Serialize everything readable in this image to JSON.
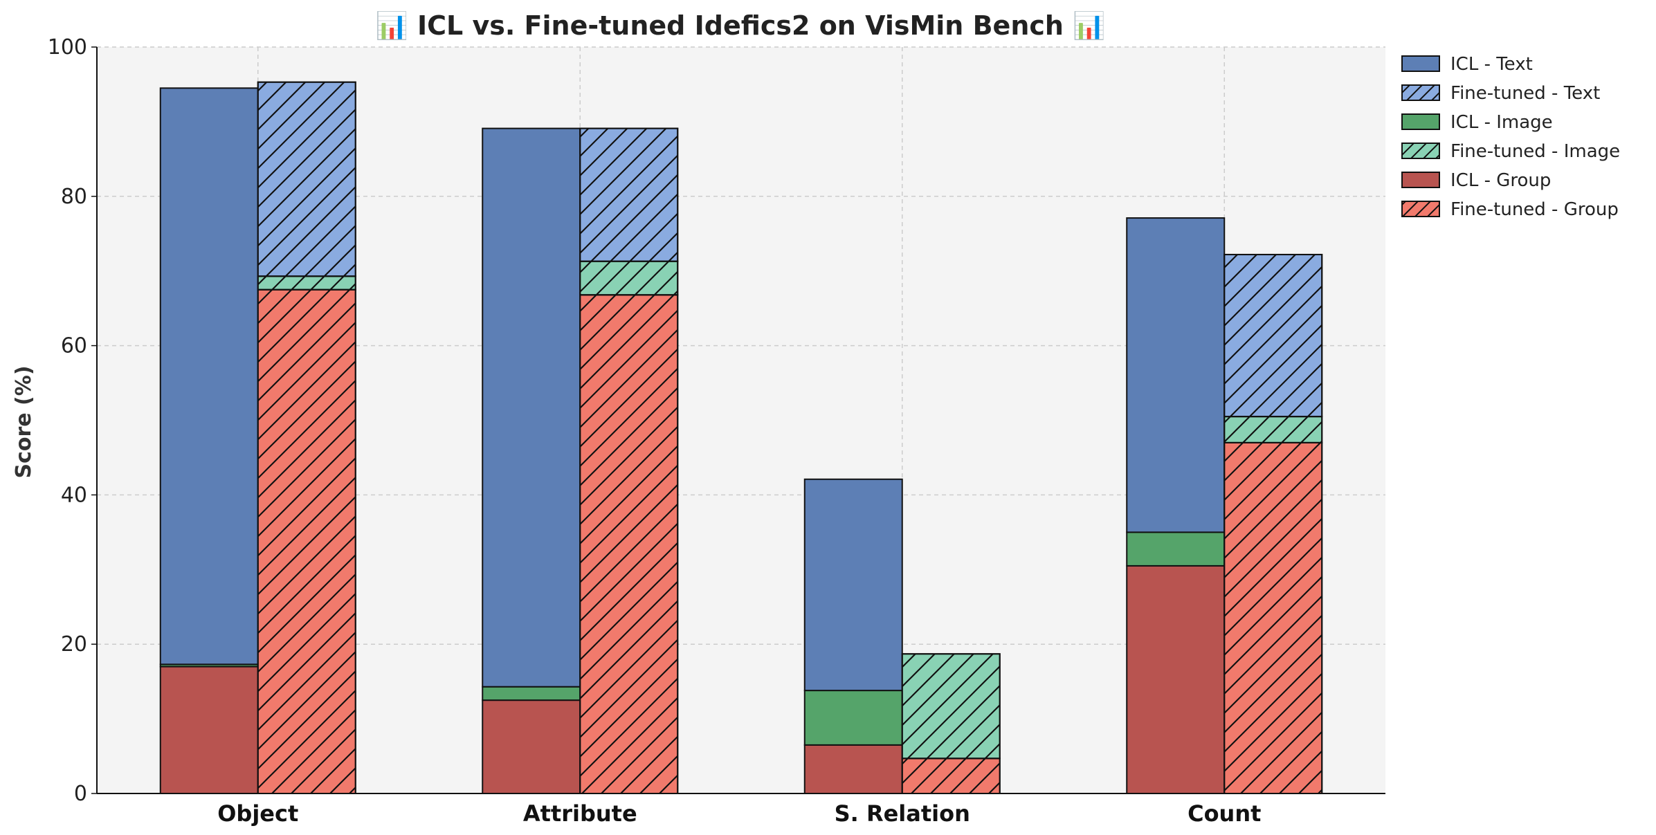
{
  "chart_data": {
    "type": "bar",
    "stacked": true,
    "title": "📊 ICL vs. Fine-tuned Idefics2 on VisMin Bench 📊",
    "xlabel": "",
    "ylabel": "Score (%)",
    "ylim": [
      0,
      100
    ],
    "yticks": [
      0,
      20,
      40,
      60,
      80,
      100
    ],
    "grid": true,
    "legend_position": "top-right-outside",
    "categories": [
      "Object",
      "Attribute",
      "S. Relation",
      "Count"
    ],
    "groups": [
      {
        "name": "ICL",
        "hatched": false,
        "segments": [
          {
            "name": "ICL - Group",
            "color": "#b85450",
            "values": [
              17.0,
              12.5,
              6.5,
              30.5
            ]
          },
          {
            "name": "ICL - Image",
            "color": "#55a46a",
            "values": [
              0.3,
              1.8,
              7.3,
              4.5
            ]
          },
          {
            "name": "ICL - Text",
            "color": "#5d7fb5",
            "values": [
              77.2,
              74.8,
              28.3,
              42.1
            ]
          }
        ]
      },
      {
        "name": "Fine-tuned",
        "hatched": true,
        "segments": [
          {
            "name": "Fine-tuned - Group",
            "color": "#f17a6c",
            "values": [
              67.5,
              66.8,
              4.7,
              47.0
            ]
          },
          {
            "name": "Fine-tuned - Image",
            "color": "#89d2b4",
            "values": [
              1.8,
              4.5,
              14.0,
              3.5
            ]
          },
          {
            "name": "Fine-tuned - Text",
            "color": "#8aabe0",
            "values": [
              26.0,
              17.8,
              0.0,
              21.7
            ]
          }
        ]
      }
    ],
    "legend": [
      "ICL - Text",
      "Fine-tuned - Text",
      "ICL - Image",
      "Fine-tuned - Image",
      "ICL - Group",
      "Fine-tuned - Group"
    ]
  },
  "colors": {
    "background": "#f4f4f4",
    "grid": "#cccccc",
    "edge": "#111111"
  }
}
